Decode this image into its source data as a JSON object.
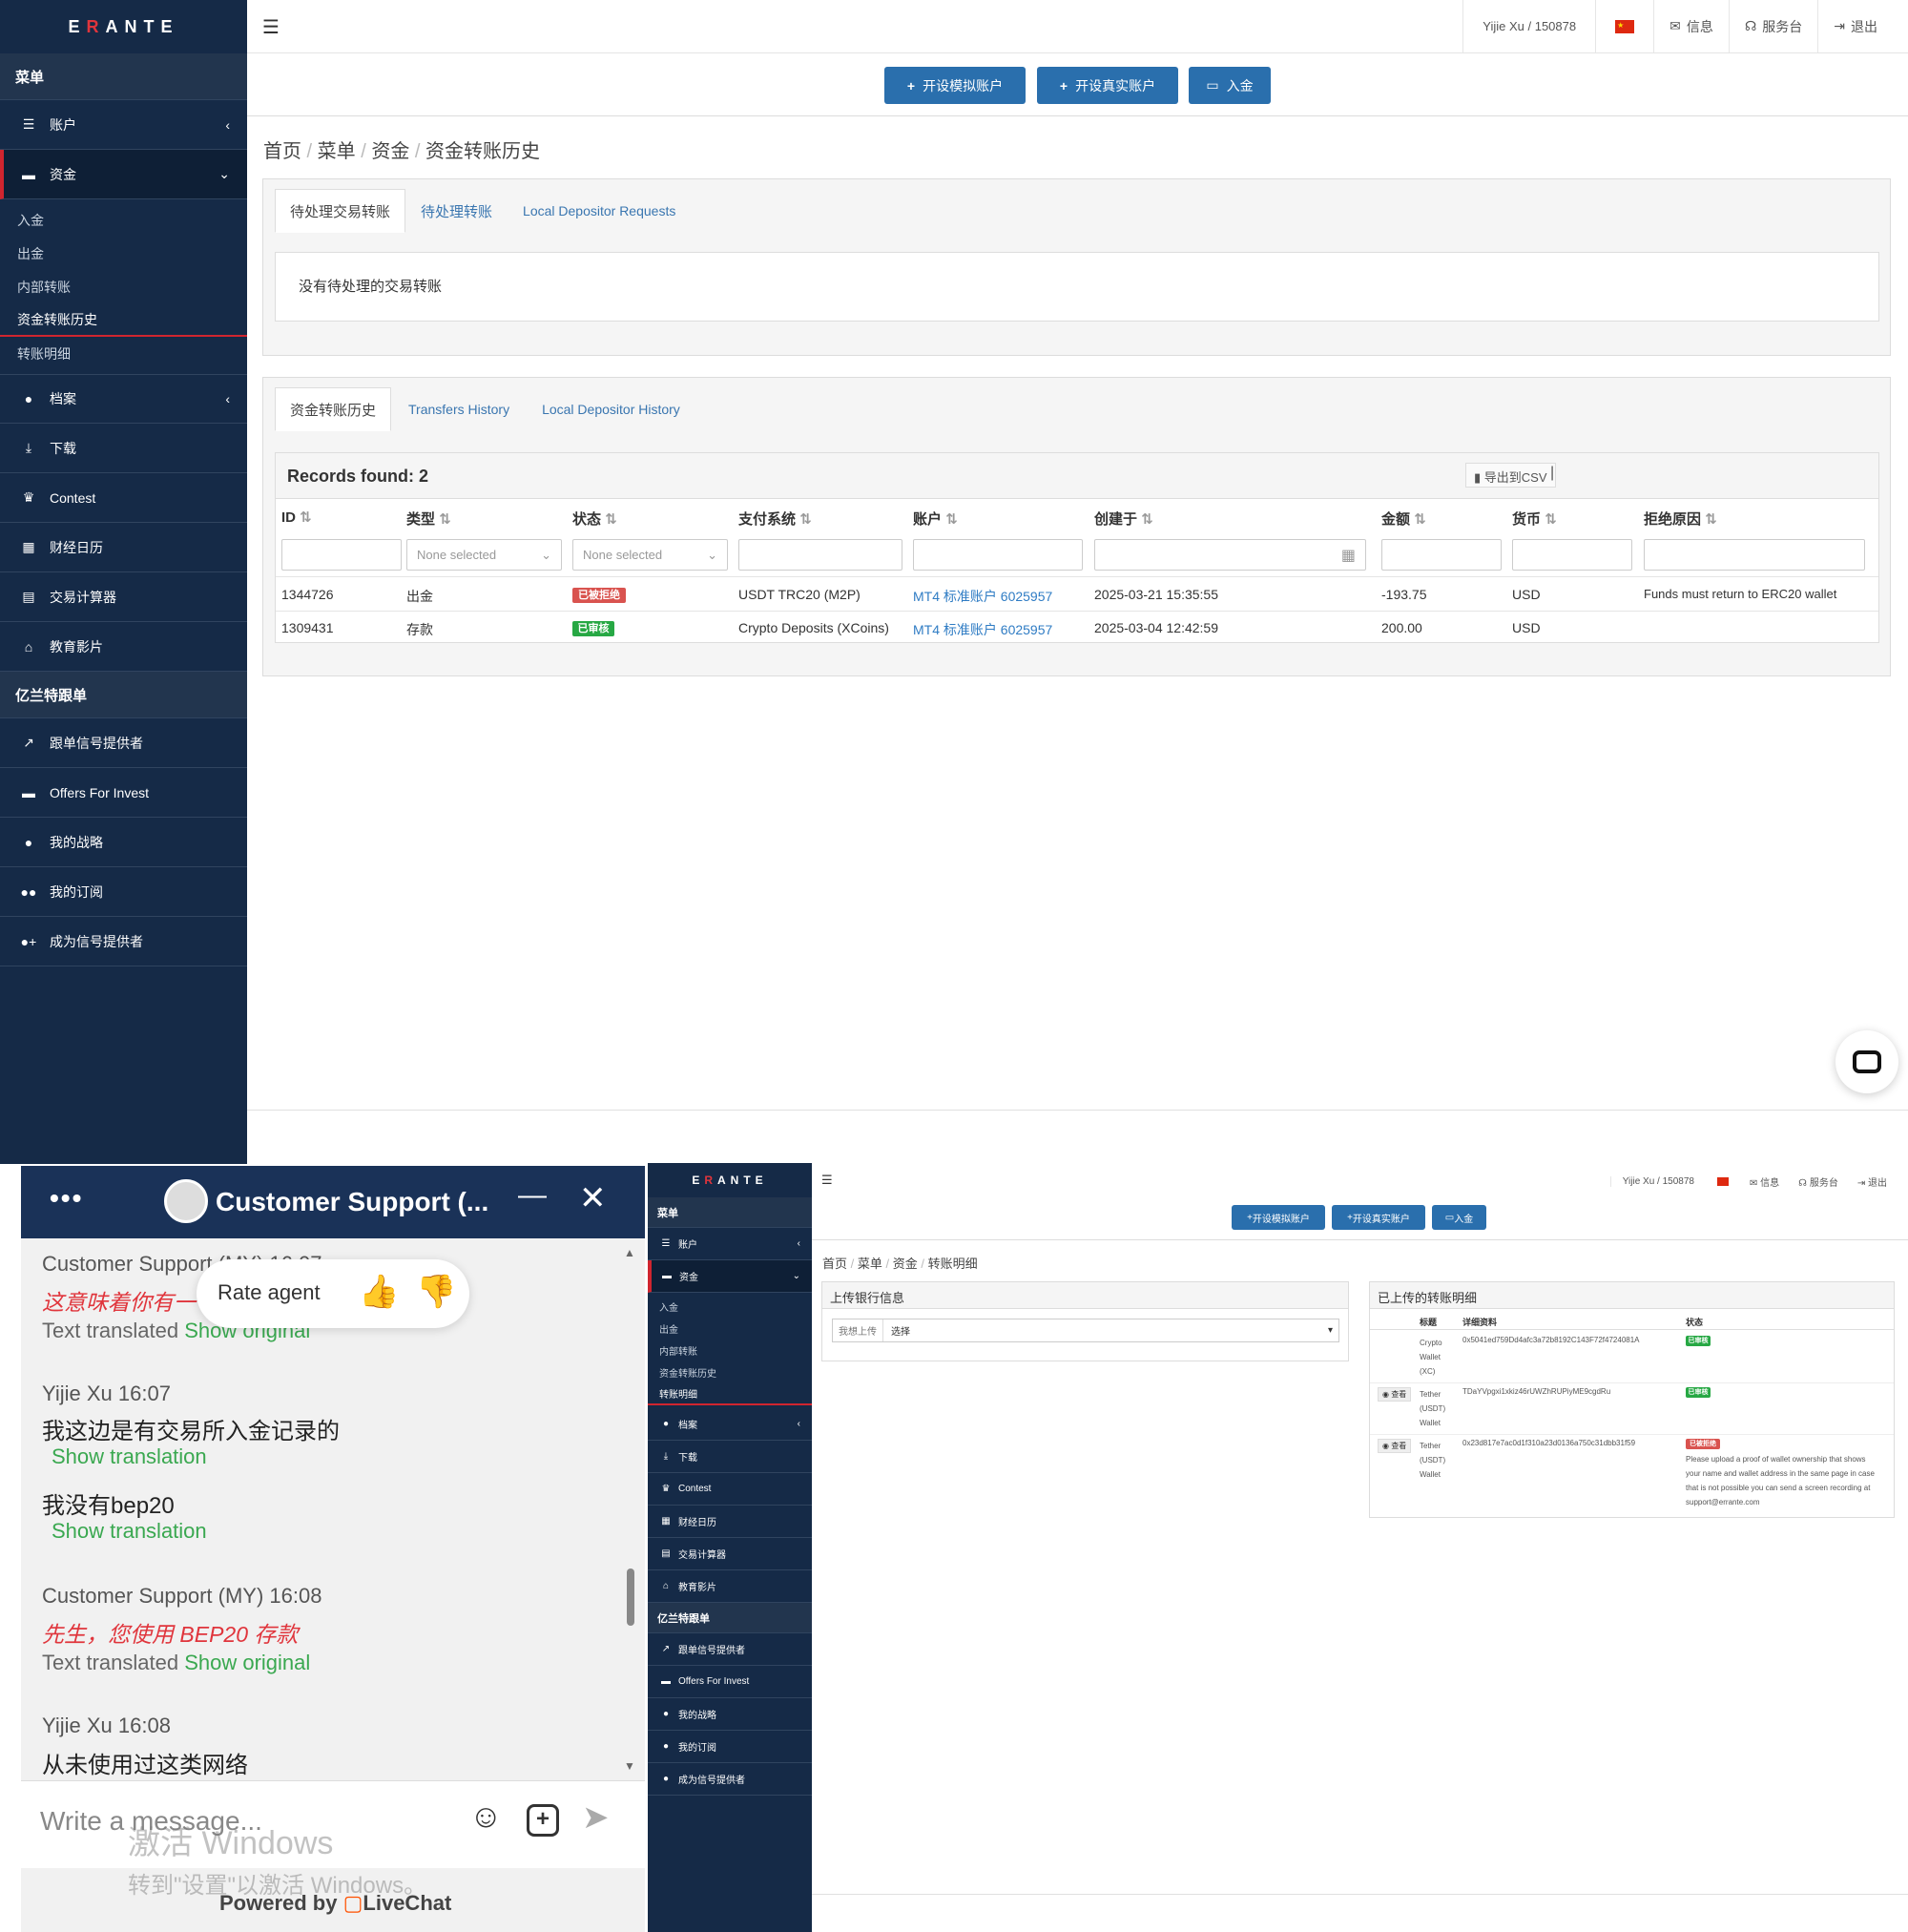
{
  "app": {
    "logo_prefix": "E",
    "logo_mark": "R",
    "logo_suffix": "ANTE"
  },
  "sidebar": {
    "menu_header": "菜单",
    "items": [
      {
        "label": "账户",
        "icon": "list-icon"
      },
      {
        "label": "资金",
        "icon": "wallet-icon"
      },
      {
        "label": "档案",
        "icon": "user-icon"
      },
      {
        "label": "下载",
        "icon": "download-icon"
      },
      {
        "label": "Contest",
        "icon": "trophy-icon"
      },
      {
        "label": "财经日历",
        "icon": "calendar-icon"
      },
      {
        "label": "交易计算器",
        "icon": "calculator-icon"
      },
      {
        "label": "教育影片",
        "icon": "bank-icon"
      }
    ],
    "funds_sub": [
      "入金",
      "出金",
      "内部转账",
      "资金转账历史",
      "转账明细"
    ],
    "copy_header": "亿兰特跟单",
    "copy_items": [
      {
        "label": "跟单信号提供者",
        "icon": "chart-icon"
      },
      {
        "label": "Offers For Invest",
        "icon": "wallet-icon"
      },
      {
        "label": "我的战略",
        "icon": "user-icon"
      },
      {
        "label": "我的订阅",
        "icon": "users-icon"
      },
      {
        "label": "成为信号提供者",
        "icon": "user-plus-icon"
      }
    ]
  },
  "topbar": {
    "user": "Yijie Xu / 150878",
    "messages": "信息",
    "support": "服务台",
    "logout": "退出",
    "menu_icon": "hamburger-icon"
  },
  "actions": {
    "demo": "开设模拟账户",
    "real": "开设真实账户",
    "deposit": "入金"
  },
  "breadcrumb": [
    "首页",
    "菜单",
    "资金",
    "资金转账历史"
  ],
  "pending": {
    "tabs": [
      "待处理交易转账",
      "待处理转账",
      "Local Depositor Requests"
    ],
    "empty": "没有待处理的交易转账"
  },
  "history": {
    "tabs": [
      "资金转账历史",
      "Transfers History",
      "Local Depositor History"
    ],
    "records_found": "Records found: 2",
    "export": "导出到CSV",
    "columns": [
      "ID",
      "类型",
      "状态",
      "支付系统",
      "账户",
      "创建于",
      "金额",
      "货币",
      "拒绝原因"
    ],
    "filter_placeholder": "None selected",
    "rows": [
      {
        "id": "1344726",
        "type": "出金",
        "status": "已被拒绝",
        "status_color": "#d9534f",
        "system": "USDT TRC20 (M2P)",
        "account": "MT4 标准账户 6025957",
        "created": "2025-03-21 15:35:55",
        "amount": "-193.75",
        "currency": "USD",
        "reason": "Funds must return to ERC20 wallet"
      },
      {
        "id": "1309431",
        "type": "存款",
        "status": "已审核",
        "status_color": "#27a844",
        "system": "Crypto Deposits (XCoins)",
        "account": "MT4 标准账户 6025957",
        "created": "2025-03-04 12:42:59",
        "amount": "200.00",
        "currency": "USD",
        "reason": ""
      }
    ]
  },
  "chat": {
    "title": "Customer Support (...",
    "msgs": {
      "cs1_meta": "Customer Support (MY) 16:07",
      "cs1_text": "这意味着你有一",
      "translated": "Text translated",
      "show_original": "Show original",
      "rate_agent": "Rate agent",
      "u1_meta": "Yijie Xu 16:07",
      "u1_text": "我这边是有交易所入金记录的",
      "show_translation": "Show translation",
      "u2_text": "我没有bep20",
      "cs2_meta": "Customer Support (MY) 16:08",
      "cs2_text": "先生，您使用 BEP20 存款",
      "u3_meta": "Yijie Xu 16:08",
      "u3_text": "从未使用过这类网络"
    },
    "placeholder": "Write a message...",
    "powered_by": "Powered by",
    "brand": "LiveChat",
    "watermark1": "激活 Windows",
    "watermark2": "转到\"设置\"以激活 Windows。"
  },
  "second": {
    "breadcrumb": [
      "首页",
      "菜单",
      "资金",
      "转账明细"
    ],
    "upload_title": "上传银行信息",
    "upload_label": "我想上传",
    "upload_select": "选择",
    "list_title": "已上传的转账明细",
    "columns": [
      "标题",
      "详细资料",
      "状态"
    ],
    "view": "查看",
    "rows": [
      {
        "title": "Crypto Wallet (XC)",
        "detail": "0x5041ed759Dd4afc3a72b8192C143F72f4724081A",
        "status": "已审核",
        "color": "#27a844",
        "note": ""
      },
      {
        "title": "Tether (USDT) Wallet",
        "detail": "TDaYVpgxi1xkiz46rUWZhRUPiyME9cgdRu",
        "status": "已审核",
        "color": "#27a844",
        "note": ""
      },
      {
        "title": "Tether (USDT) Wallet",
        "detail": "0x23d817e7ac0d1f310a23d0136a750c31dbb31f59",
        "status": "已被拒绝",
        "color": "#d9534f",
        "note": "Please upload a proof of wallet ownership that shows your name and wallet address in the same page in case that is not possible you can send a screen recording at support@errante.com"
      }
    ]
  }
}
